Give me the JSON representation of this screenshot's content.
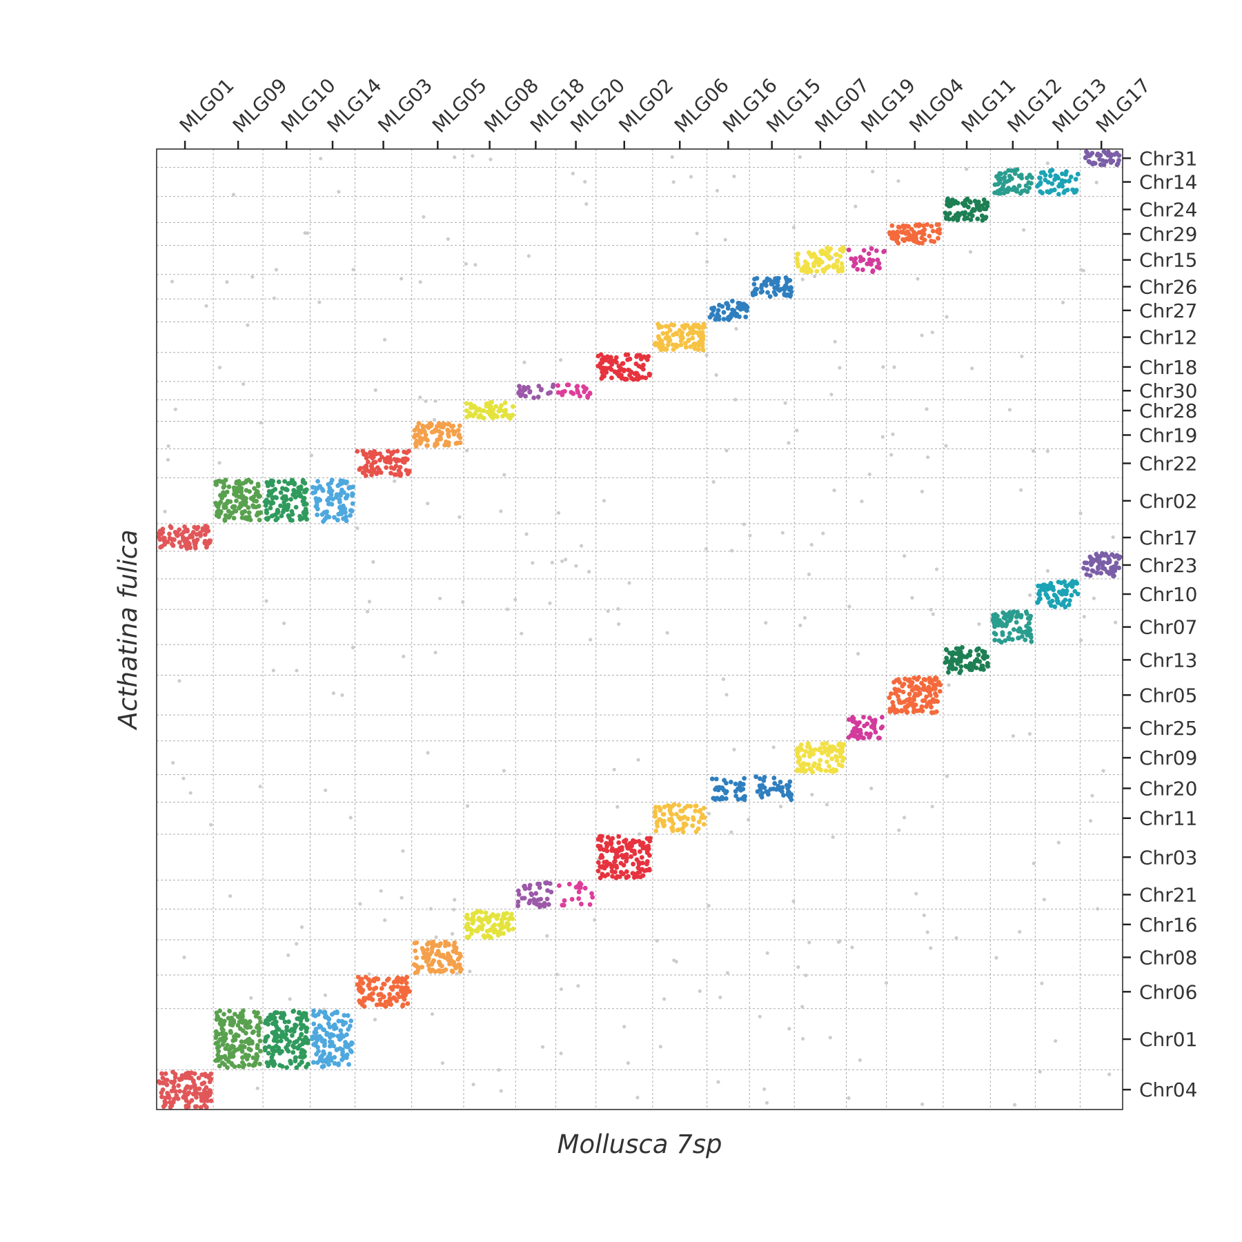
{
  "chart_data": {
    "type": "scatter",
    "title": "",
    "xlabel": "Mollusca 7sp",
    "ylabel": "Acthatina fulica",
    "grid": true,
    "x_axis_position": "top",
    "y_axis_position": "right",
    "x_categories": [
      "MLG01",
      "MLG09",
      "MLG10",
      "MLG14",
      "MLG03",
      "MLG05",
      "MLG08",
      "MLG18",
      "MLG20",
      "MLG02",
      "MLG06",
      "MLG16",
      "MLG15",
      "MLG07",
      "MLG19",
      "MLG04",
      "MLG11",
      "MLG12",
      "MLG13",
      "MLG17"
    ],
    "x_sizes": [
      1.2,
      1.05,
      1.0,
      0.95,
      1.2,
      1.1,
      1.1,
      0.85,
      0.85,
      1.2,
      1.15,
      0.9,
      0.95,
      1.1,
      0.85,
      1.2,
      1.0,
      0.95,
      0.95,
      0.9
    ],
    "y_categories": [
      "Chr31",
      "Chr14",
      "Chr24",
      "Chr29",
      "Chr15",
      "Chr26",
      "Chr27",
      "Chr12",
      "Chr18",
      "Chr30",
      "Chr28",
      "Chr19",
      "Chr22",
      "Chr02",
      "Chr17",
      "Chr23",
      "Chr10",
      "Chr07",
      "Chr13",
      "Chr05",
      "Chr25",
      "Chr09",
      "Chr20",
      "Chr11",
      "Chr03",
      "Chr21",
      "Chr16",
      "Chr08",
      "Chr06",
      "Chr01",
      "Chr04"
    ],
    "y_sizes": [
      0.6,
      0.95,
      0.85,
      0.75,
      0.95,
      0.8,
      0.75,
      1.0,
      0.95,
      0.6,
      0.7,
      0.9,
      0.95,
      1.5,
      0.9,
      0.9,
      1.0,
      1.15,
      1.0,
      1.3,
      0.85,
      1.1,
      0.9,
      1.05,
      1.5,
      0.95,
      1.0,
      1.15,
      1.1,
      2.0,
      1.3
    ],
    "noise_point_count": 300,
    "blocks": [
      {
        "x": "MLG01",
        "y": "Chr17",
        "color": "#e15759",
        "density": 1.0
      },
      {
        "x": "MLG09",
        "y": "Chr02",
        "color": "#59a14f",
        "density": 1.0
      },
      {
        "x": "MLG10",
        "y": "Chr02",
        "color": "#2f9a5c",
        "density": 1.0
      },
      {
        "x": "MLG14",
        "y": "Chr02",
        "color": "#4ea8de",
        "density": 0.8
      },
      {
        "x": "MLG03",
        "y": "Chr22",
        "color": "#e8524a",
        "density": 1.0
      },
      {
        "x": "MLG05",
        "y": "Chr19",
        "color": "#f5a04a",
        "density": 1.0
      },
      {
        "x": "MLG08",
        "y": "Chr28",
        "color": "#e4e33e",
        "density": 1.0
      },
      {
        "x": "MLG18",
        "y": "Chr30",
        "color": "#9b59a8",
        "density": 0.6
      },
      {
        "x": "MLG20",
        "y": "Chr30",
        "color": "#de3e9a",
        "density": 0.6
      },
      {
        "x": "MLG02",
        "y": "Chr18",
        "color": "#e6333e",
        "density": 1.0
      },
      {
        "x": "MLG06",
        "y": "Chr12",
        "color": "#f7c243",
        "density": 1.0
      },
      {
        "x": "MLG16",
        "y": "Chr27",
        "color": "#2f7fbf",
        "density": 1.0
      },
      {
        "x": "MLG15",
        "y": "Chr26",
        "color": "#2f7fbf",
        "density": 1.0
      },
      {
        "x": "MLG07",
        "y": "Chr15",
        "color": "#f2e045",
        "density": 1.0
      },
      {
        "x": "MLG19",
        "y": "Chr15",
        "color": "#d23b9c",
        "density": 0.5
      },
      {
        "x": "MLG04",
        "y": "Chr29",
        "color": "#f46a3c",
        "density": 1.0
      },
      {
        "x": "MLG11",
        "y": "Chr24",
        "color": "#1d7f53",
        "density": 1.0
      },
      {
        "x": "MLG12",
        "y": "Chr14",
        "color": "#2a9d8f",
        "density": 0.8
      },
      {
        "x": "MLG13",
        "y": "Chr14",
        "color": "#1ba3b5",
        "density": 0.7
      },
      {
        "x": "MLG17",
        "y": "Chr31",
        "color": "#7b5ea7",
        "density": 0.8
      },
      {
        "x": "MLG01",
        "y": "Chr04",
        "color": "#e15759",
        "density": 1.0
      },
      {
        "x": "MLG09",
        "y": "Chr01",
        "color": "#59a14f",
        "density": 1.0
      },
      {
        "x": "MLG10",
        "y": "Chr01",
        "color": "#2f9a5c",
        "density": 1.0
      },
      {
        "x": "MLG14",
        "y": "Chr01",
        "color": "#4ea8de",
        "density": 0.8
      },
      {
        "x": "MLG03",
        "y": "Chr06",
        "color": "#f46a3c",
        "density": 1.0
      },
      {
        "x": "MLG05",
        "y": "Chr08",
        "color": "#f5a04a",
        "density": 1.0
      },
      {
        "x": "MLG08",
        "y": "Chr16",
        "color": "#e4e33e",
        "density": 1.0
      },
      {
        "x": "MLG18",
        "y": "Chr21",
        "color": "#9b59a8",
        "density": 0.6
      },
      {
        "x": "MLG20",
        "y": "Chr21",
        "color": "#de3e9a",
        "density": 0.3
      },
      {
        "x": "MLG02",
        "y": "Chr03",
        "color": "#e6333e",
        "density": 1.0
      },
      {
        "x": "MLG06",
        "y": "Chr11",
        "color": "#f7c243",
        "density": 0.8
      },
      {
        "x": "MLG16",
        "y": "Chr20",
        "color": "#2f7fbf",
        "density": 0.6
      },
      {
        "x": "MLG15",
        "y": "Chr20",
        "color": "#2f7fbf",
        "density": 0.6
      },
      {
        "x": "MLG07",
        "y": "Chr09",
        "color": "#f2e045",
        "density": 1.0
      },
      {
        "x": "MLG19",
        "y": "Chr25",
        "color": "#d23b9c",
        "density": 0.8
      },
      {
        "x": "MLG04",
        "y": "Chr05",
        "color": "#f46a3c",
        "density": 1.0
      },
      {
        "x": "MLG11",
        "y": "Chr13",
        "color": "#1d7f53",
        "density": 1.0
      },
      {
        "x": "MLG12",
        "y": "Chr07",
        "color": "#2a9d8f",
        "density": 1.0
      },
      {
        "x": "MLG13",
        "y": "Chr10",
        "color": "#1ba3b5",
        "density": 0.9
      },
      {
        "x": "MLG17",
        "y": "Chr23",
        "color": "#7b5ea7",
        "density": 1.0
      }
    ],
    "noise_color": "#cccccc",
    "grid_color": "#aaaaaa"
  }
}
